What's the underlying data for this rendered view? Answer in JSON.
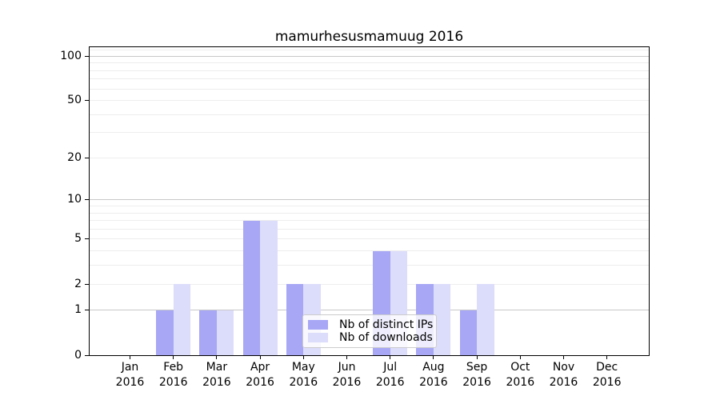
{
  "chart_data": {
    "type": "bar",
    "title": "mamurhesusmamuug 2016",
    "x_categories": [
      {
        "label": "Jan",
        "sub": "2016"
      },
      {
        "label": "Feb",
        "sub": "2016"
      },
      {
        "label": "Mar",
        "sub": "2016"
      },
      {
        "label": "Apr",
        "sub": "2016"
      },
      {
        "label": "May",
        "sub": "2016"
      },
      {
        "label": "Jun",
        "sub": "2016"
      },
      {
        "label": "Jul",
        "sub": "2016"
      },
      {
        "label": "Aug",
        "sub": "2016"
      },
      {
        "label": "Sep",
        "sub": "2016"
      },
      {
        "label": "Oct",
        "sub": "2016"
      },
      {
        "label": "Nov",
        "sub": "2016"
      },
      {
        "label": "Dec",
        "sub": "2016"
      }
    ],
    "series": [
      {
        "name": "Nb of distinct IPs",
        "color": "#a7a7f6",
        "values": [
          0,
          1,
          1,
          7,
          2,
          0,
          4,
          2,
          1,
          0,
          0,
          0
        ]
      },
      {
        "name": "Nb of downloads",
        "color": "#dcdcfb",
        "values": [
          0,
          2,
          1,
          7,
          2,
          0,
          4,
          2,
          2,
          0,
          0,
          0
        ]
      }
    ],
    "y_axis": {
      "scale": "log1p",
      "ylim": [
        0,
        115
      ],
      "ticks": [
        0,
        1,
        2,
        5,
        10,
        20,
        50,
        100
      ],
      "major_gridlines": [
        1,
        10,
        100
      ],
      "minor_gridlines": [
        2,
        3,
        4,
        5,
        6,
        7,
        8,
        9,
        20,
        30,
        40,
        50,
        60,
        70,
        80,
        90,
        110
      ]
    },
    "legend": {
      "position": "inside-bottom-center",
      "entries": [
        "Nb of distinct IPs",
        "Nb of downloads"
      ]
    },
    "colors": {
      "grid_major": "#c8c8c8",
      "grid_minor": "#ededed",
      "axis": "#000000",
      "background": "#ffffff"
    }
  }
}
